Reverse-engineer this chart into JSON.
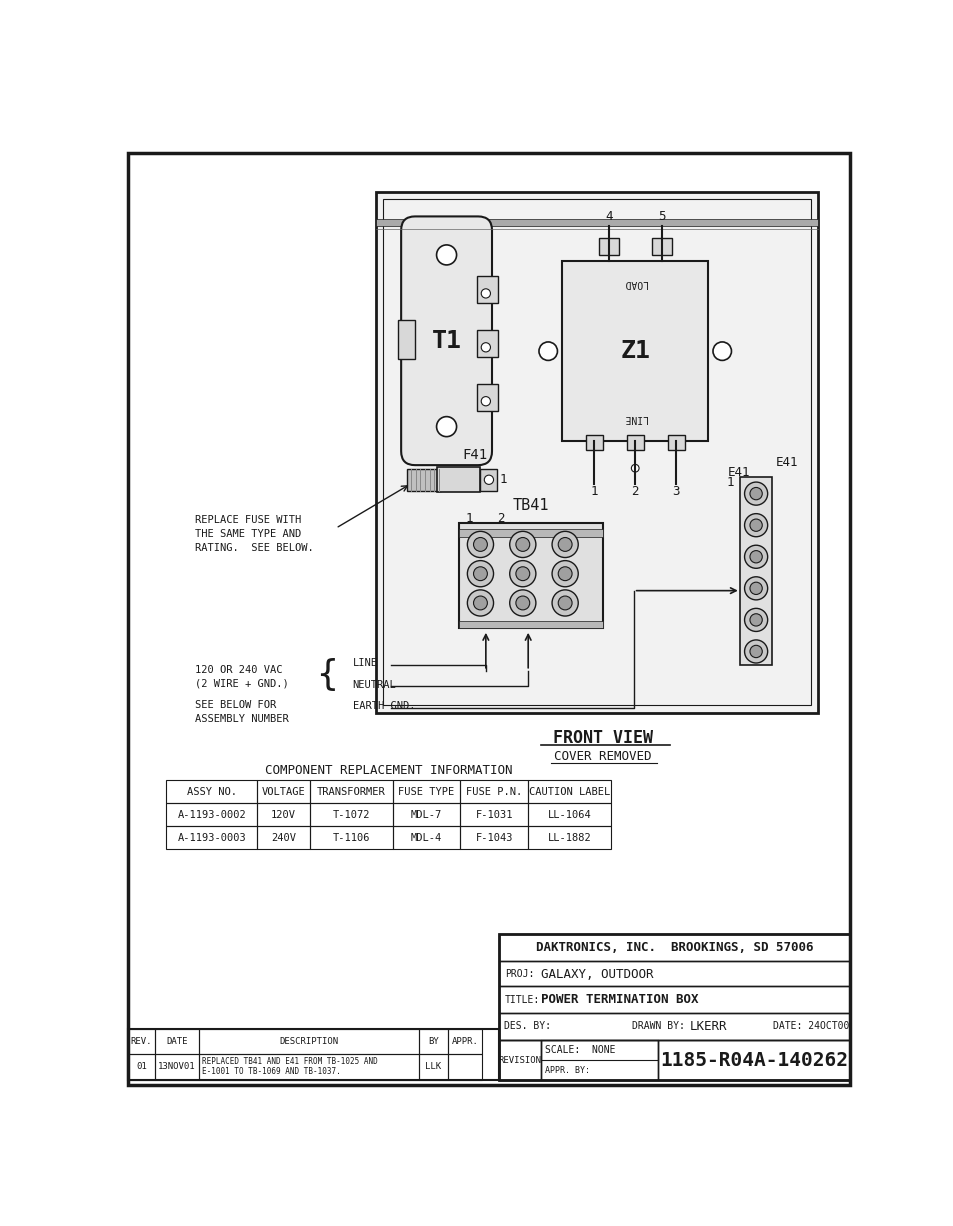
{
  "bg_color": "#ffffff",
  "line_color": "#1a1a1a",
  "title": "POWER TERMINATION BOX",
  "proj": "GALAXY, OUTDOOR",
  "company": "DAKTRONICS, INC.  BROOKINGS, SD 57006",
  "drawn_by": "LKERR",
  "date": "24OCT00",
  "scale": "NONE",
  "drawing_number": "1185-R04A-140262",
  "rev_table": {
    "rows": [
      [
        "01",
        "13NOV01",
        "REPLACED TB41 AND E41 FROM TB-1025 AND\nE-1001 TO TB-1069 AND TB-1037.",
        "LLK",
        ""
      ]
    ],
    "headers": [
      "REV.",
      "DATE",
      "DESCRIPTION",
      "BY",
      "APPR."
    ]
  },
  "component_table": {
    "title": "COMPONENT REPLACEMENT INFORMATION",
    "headers": [
      "ASSY NO.",
      "VOLTAGE",
      "TRANSFORMER",
      "FUSE TYPE",
      "FUSE P.N.",
      "CAUTION LABEL"
    ],
    "rows": [
      [
        "A-1193-0002",
        "120V",
        "T-1072",
        "MDL-7",
        "F-1031",
        "LL-1064"
      ],
      [
        "A-1193-0003",
        "240V",
        "T-1106",
        "MDL-4",
        "F-1043",
        "LL-1882"
      ]
    ]
  },
  "front_view_label": "FRONT VIEW",
  "cover_removed_label": "COVER REMOVED"
}
